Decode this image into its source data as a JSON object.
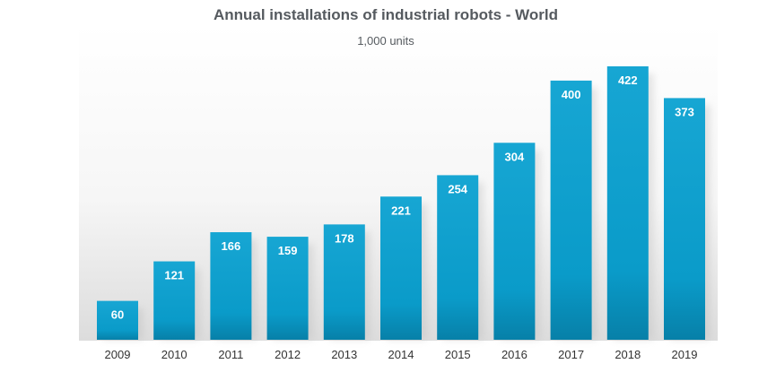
{
  "chart_data": {
    "type": "bar",
    "title": "Annual installations of industrial robots - World",
    "subtitle": "1,000 units",
    "xlabel": "",
    "ylabel": "",
    "categories": [
      "2009",
      "2010",
      "2011",
      "2012",
      "2013",
      "2014",
      "2015",
      "2016",
      "2017",
      "2018",
      "2019"
    ],
    "values": [
      60,
      121,
      166,
      159,
      178,
      221,
      254,
      304,
      400,
      422,
      373
    ],
    "ylim": [
      0,
      430
    ],
    "grid": false,
    "legend": "none",
    "data_labels": true,
    "bar_color": "#0a9bc9",
    "bar_color_dark": "#0684ad"
  }
}
